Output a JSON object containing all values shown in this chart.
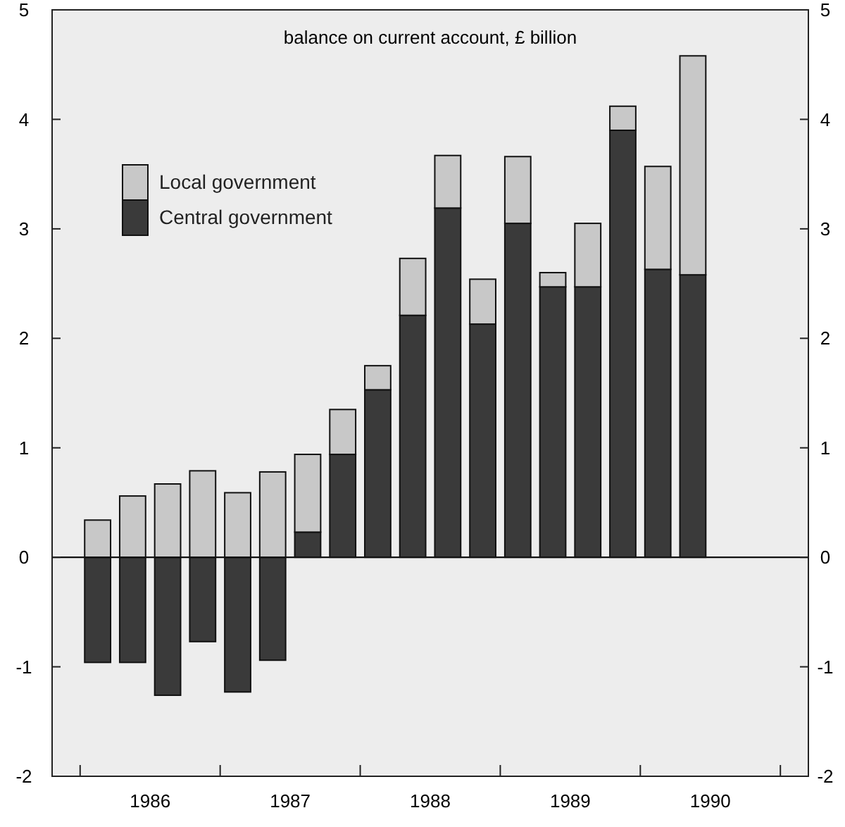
{
  "chart_data": {
    "type": "bar",
    "title": "balance on current account, £ billion",
    "stacked": true,
    "x": [
      1986.125,
      1986.375,
      1986.625,
      1986.875,
      1987.125,
      1987.375,
      1987.625,
      1987.875,
      1988.125,
      1988.375,
      1988.625,
      1988.875,
      1989.125,
      1989.375,
      1989.625,
      1989.875,
      1990.125,
      1990.375
    ],
    "series": [
      {
        "name": "Central government",
        "color": "#3a3a3a",
        "values": [
          -0.96,
          -0.96,
          -1.26,
          -0.77,
          -1.23,
          -0.94,
          0.23,
          0.94,
          1.53,
          2.21,
          3.19,
          2.13,
          3.05,
          2.47,
          2.47,
          3.9,
          2.63,
          2.58
        ]
      },
      {
        "name": "Local government",
        "color": "#c8c8c8",
        "values": [
          0.34,
          0.56,
          0.67,
          0.79,
          0.59,
          0.78,
          0.71,
          0.41,
          0.22,
          0.52,
          0.48,
          0.41,
          0.61,
          0.13,
          0.58,
          0.22,
          0.94,
          2.0
        ]
      }
    ],
    "xlim": [
      1985.8,
      1991.2
    ],
    "xticks": [
      {
        "value": 1986,
        "label": null
      },
      {
        "value": 1987,
        "label": null
      },
      {
        "value": 1988,
        "label": null
      },
      {
        "value": 1989,
        "label": null
      },
      {
        "value": 1990,
        "label": null
      },
      {
        "value": 1991,
        "label": null
      },
      {
        "value": 1986.5,
        "label": "1986"
      },
      {
        "value": 1987.5,
        "label": "1987"
      },
      {
        "value": 1988.5,
        "label": "1988"
      },
      {
        "value": 1989.5,
        "label": "1989"
      },
      {
        "value": 1990.5,
        "label": "1990"
      }
    ],
    "ylim": [
      -2,
      5
    ],
    "yticks": [
      -2,
      -1,
      0,
      1,
      2,
      3,
      4,
      5
    ],
    "y2lim": [
      -2,
      5
    ],
    "y2ticks": [
      -2,
      -1,
      0,
      1,
      2,
      3,
      4,
      5
    ],
    "ref_lines": [
      {
        "axis": "y",
        "value": 0
      }
    ],
    "legend": "top left"
  }
}
